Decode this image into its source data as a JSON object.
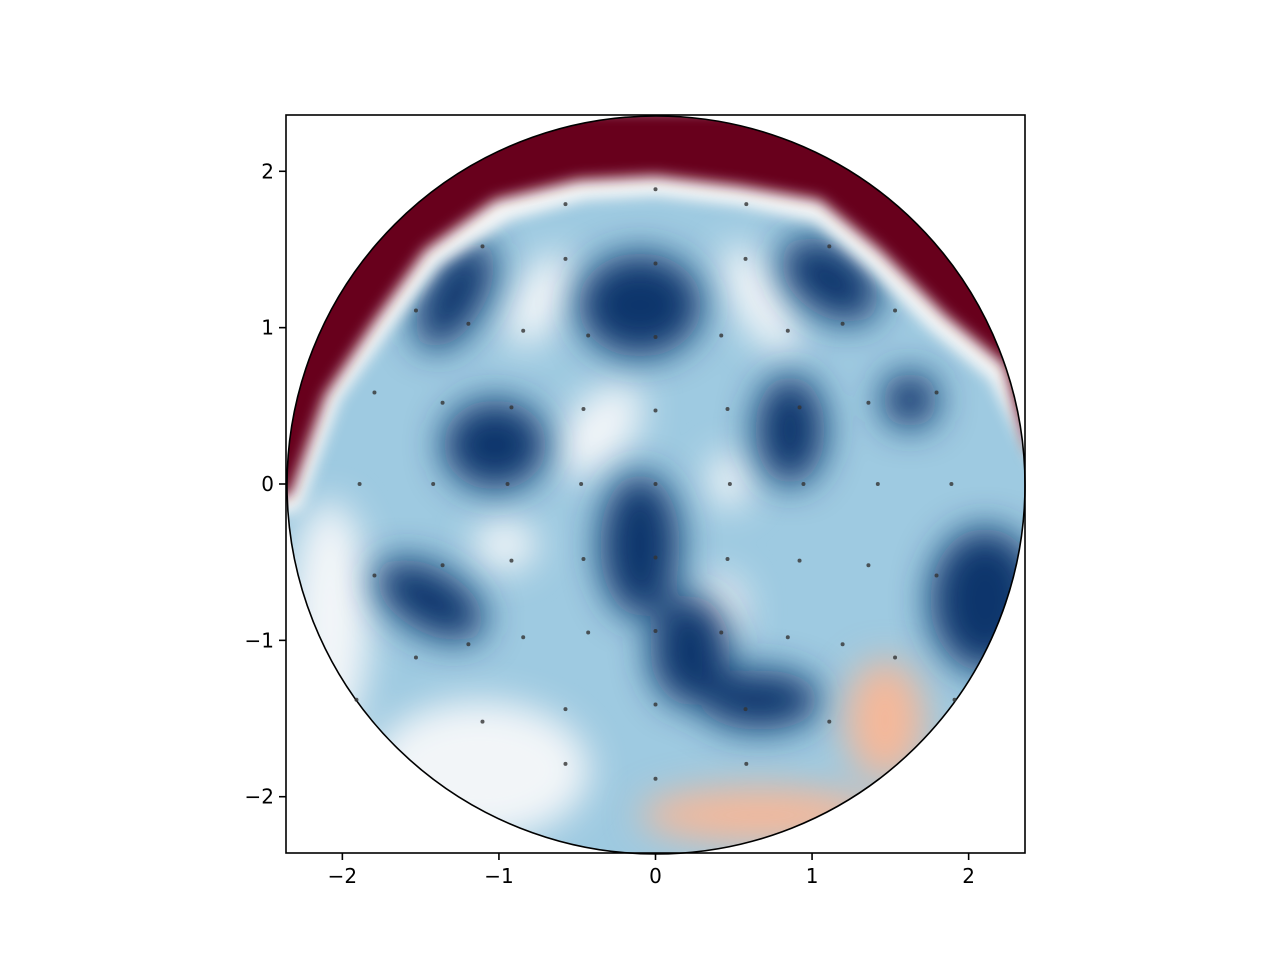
{
  "chart_data": {
    "type": "scatter",
    "xlim": [
      -2.36,
      2.36
    ],
    "ylim": [
      -2.36,
      2.36
    ],
    "xticks": [
      {
        "value": -2,
        "label": "−2"
      },
      {
        "value": -1,
        "label": "−1"
      },
      0,
      1,
      2
    ],
    "yticks": [
      {
        "value": -2,
        "label": "−2"
      },
      {
        "value": -1,
        "label": "−1"
      },
      0,
      1,
      2
    ],
    "color": "#333333",
    "x": [
      0,
      -0.575,
      0.58,
      -1.105,
      1.11,
      -0.575,
      0.575,
      0,
      -1.53,
      1.53,
      -1.195,
      1.195,
      -0.845,
      0.845,
      -0.43,
      0.42,
      0,
      -1.795,
      1.795,
      -1.36,
      1.36,
      -0.92,
      0.92,
      -0.46,
      0.46,
      0,
      -1.89,
      -1.42,
      -0.945,
      -0.475,
      0,
      0.475,
      0.945,
      1.42,
      1.89,
      0,
      -0.46,
      0.46,
      -0.92,
      0.92,
      -1.36,
      1.36,
      -1.795,
      1.795,
      0,
      -0.43,
      0.42,
      -0.845,
      0.845,
      -1.195,
      1.195,
      -1.53,
      1.53,
      -1.91,
      1.91,
      0,
      -0.575,
      0.575,
      -1.105,
      1.11,
      -0.575,
      0.58,
      0
    ],
    "y": [
      1.885,
      1.79,
      1.79,
      1.52,
      1.52,
      1.44,
      1.44,
      1.41,
      1.11,
      1.11,
      1.025,
      1.025,
      0.98,
      0.98,
      0.95,
      0.95,
      0.94,
      0.585,
      0.585,
      0.52,
      0.52,
      0.49,
      0.49,
      0.48,
      0.48,
      0.47,
      0,
      0,
      0,
      0,
      0,
      0,
      0,
      0,
      0,
      -0.47,
      -0.48,
      -0.48,
      -0.49,
      -0.49,
      -0.52,
      -0.52,
      -0.585,
      -0.585,
      -0.94,
      -0.95,
      -0.95,
      -0.98,
      -0.98,
      -1.025,
      -1.025,
      -1.11,
      -1.11,
      -1.38,
      -1.38,
      -1.41,
      -1.44,
      -1.44,
      -1.52,
      -1.52,
      -1.79,
      -1.79,
      -1.885
    ]
  }
}
